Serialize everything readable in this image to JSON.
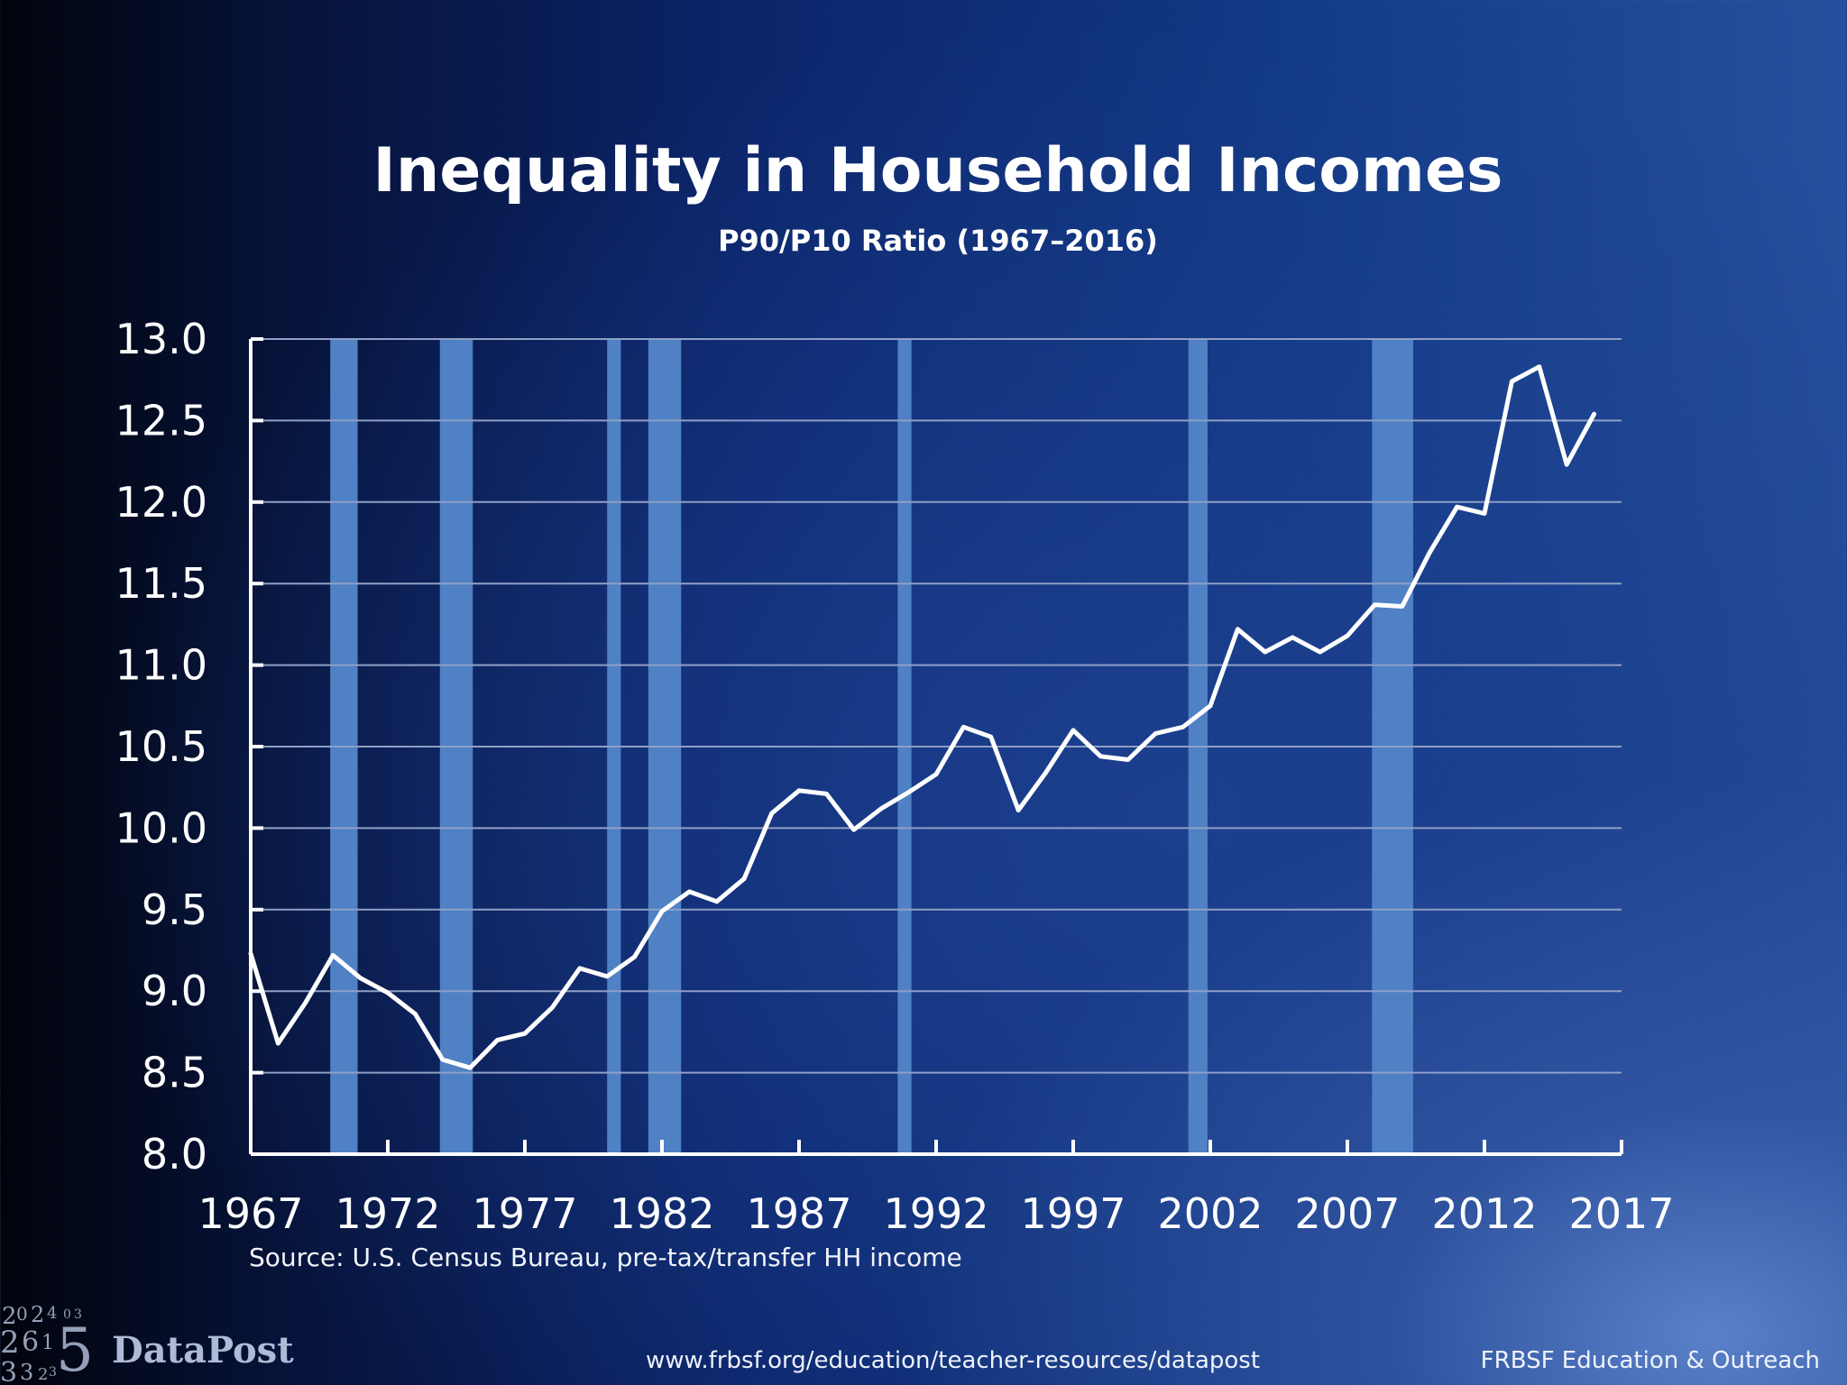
{
  "header": {
    "title": "Inequality in Household Incomes",
    "subtitle": "P90/P10 Ratio (1967–2016)"
  },
  "footer": {
    "source": "Source: U.S. Census Bureau, pre-tax/transfer HH income",
    "brand": "DataPost",
    "url": "www.frbsf.org/education/teacher-resources/datapost",
    "org": "FRBSF Education & Outreach"
  },
  "colors": {
    "line": "#ffffff",
    "recession_band": "#4f81c4",
    "gridline": "#8f9fc6"
  },
  "chart_data": {
    "type": "line",
    "title": "Inequality in Household Incomes",
    "subtitle": "P90/P10 Ratio (1967–2016)",
    "xlabel": "",
    "ylabel": "",
    "xlim": [
      1967,
      2017
    ],
    "ylim": [
      8.0,
      13.0
    ],
    "x_ticks": [
      "1967",
      "1972",
      "1977",
      "1982",
      "1987",
      "1992",
      "1997",
      "2002",
      "2007",
      "2012",
      "2017"
    ],
    "y_ticks": [
      "8.0",
      "8.5",
      "9.0",
      "9.5",
      "10.0",
      "10.5",
      "11.0",
      "11.5",
      "12.0",
      "12.5",
      "13.0"
    ],
    "grid": true,
    "legend": "none",
    "recession_shading": [
      [
        1969.9,
        1970.9
      ],
      [
        1973.9,
        1975.1
      ],
      [
        1980.0,
        1980.5
      ],
      [
        1981.5,
        1982.7
      ],
      [
        1990.6,
        1991.1
      ],
      [
        2001.2,
        2001.9
      ],
      [
        2007.9,
        2009.4
      ]
    ],
    "series": [
      {
        "x": [
          1967,
          1968,
          1969,
          1970,
          1971,
          1972,
          1973,
          1974,
          1975,
          1976,
          1977,
          1978,
          1979,
          1980,
          1981,
          1982,
          1983,
          1984,
          1985,
          1986,
          1987,
          1988,
          1989,
          1990,
          1991,
          1992,
          1993,
          1994,
          1995,
          1996,
          1997,
          1998,
          1999,
          2000,
          2001,
          2002,
          2003,
          2004,
          2005,
          2006,
          2007,
          2008,
          2009,
          2010,
          2011,
          2012,
          2013,
          2014,
          2015,
          2016
        ],
        "values": [
          9.23,
          8.68,
          8.93,
          9.22,
          9.08,
          8.99,
          8.86,
          8.58,
          8.53,
          8.7,
          8.74,
          8.9,
          9.14,
          9.09,
          9.21,
          9.49,
          9.61,
          9.55,
          9.69,
          10.09,
          10.23,
          10.21,
          9.99,
          10.12,
          10.22,
          10.33,
          10.62,
          10.56,
          10.11,
          10.34,
          10.6,
          10.44,
          10.42,
          10.58,
          10.62,
          10.75,
          11.22,
          11.08,
          11.17,
          11.08,
          11.18,
          11.37,
          11.36,
          11.69,
          11.97,
          11.93,
          12.74,
          12.83,
          12.23,
          12.54
        ]
      }
    ]
  }
}
